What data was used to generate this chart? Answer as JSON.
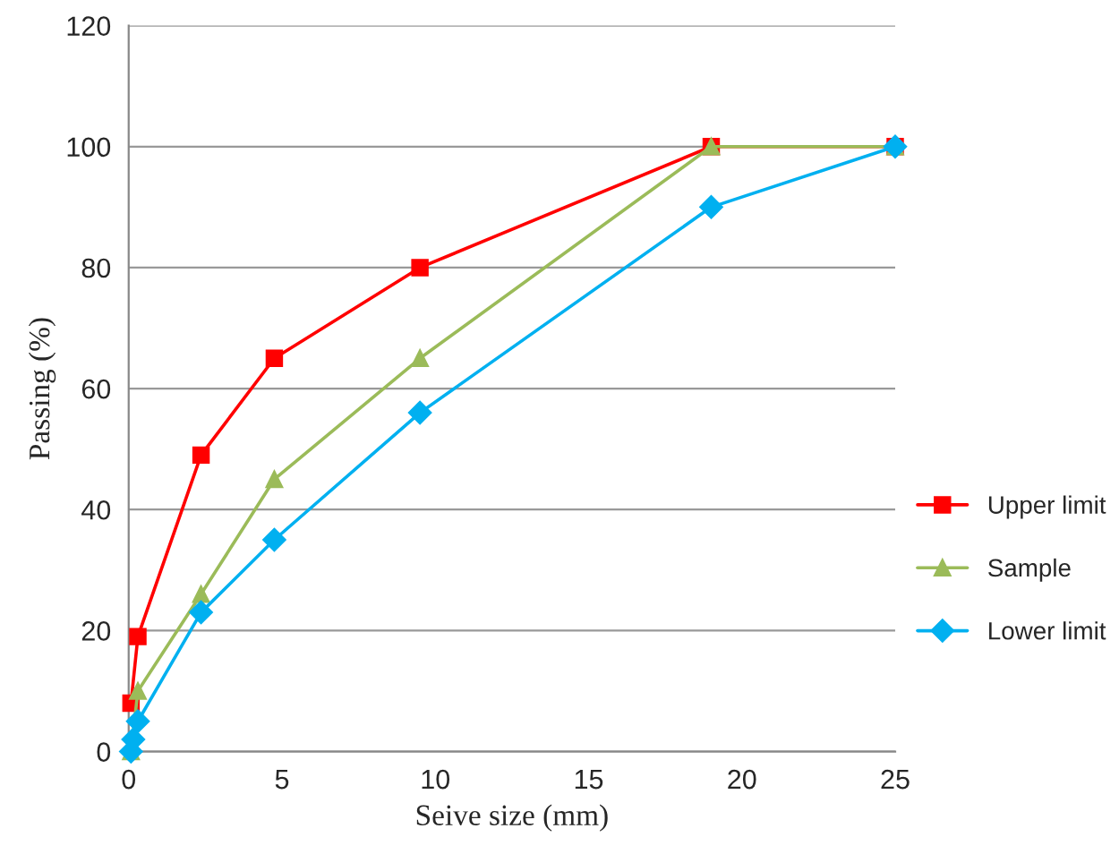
{
  "chart_data": {
    "type": "line",
    "xlabel": "Seive size (mm)",
    "ylabel": "Passing (%)",
    "xlim": [
      0,
      25
    ],
    "xticks": [
      0,
      5,
      10,
      15,
      20,
      25
    ],
    "ylim": [
      0,
      120
    ],
    "yticks": [
      0,
      20,
      40,
      60,
      80,
      100,
      120
    ],
    "grid": "y",
    "legend": "right",
    "series": [
      {
        "name": "Upper limit",
        "color": "#ff0000",
        "marker": "square",
        "x": [
          0.075,
          0.3,
          2.36,
          4.75,
          9.5,
          19,
          25
        ],
        "values": [
          8,
          19,
          49,
          65,
          80,
          100,
          100
        ]
      },
      {
        "name": "Sample",
        "color": "#9bbb59",
        "marker": "triangle",
        "x": [
          0.075,
          0.3,
          2.36,
          4.75,
          9.5,
          19,
          25
        ],
        "values": [
          0,
          10,
          26,
          45,
          65,
          100,
          100
        ]
      },
      {
        "name": "Lower limit",
        "color": "#00b0f0",
        "marker": "diamond",
        "x": [
          0.075,
          0.15,
          0.3,
          2.36,
          4.75,
          9.5,
          19,
          25
        ],
        "values": [
          0,
          2,
          5,
          23,
          35,
          56,
          90,
          100
        ]
      }
    ]
  }
}
